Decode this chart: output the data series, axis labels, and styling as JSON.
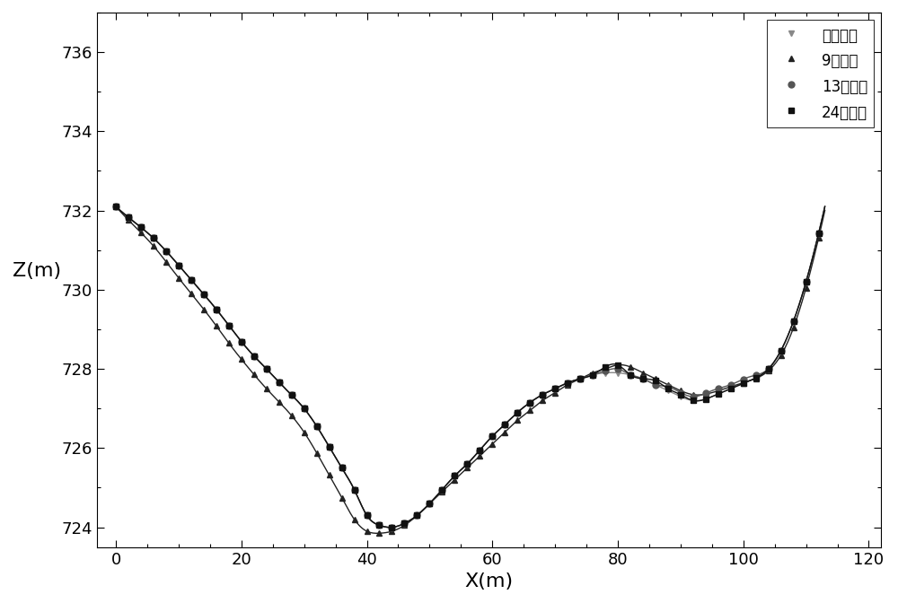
{
  "title": "",
  "xlabel": "X(m)",
  "ylabel": "Z(m)",
  "xlim": [
    -3,
    122
  ],
  "ylim": [
    723.5,
    737
  ],
  "xticks": [
    0,
    20,
    40,
    60,
    80,
    100,
    120
  ],
  "yticks": [
    724,
    726,
    728,
    730,
    732,
    734,
    736
  ],
  "legend_labels": [
    "24点插値",
    "13点插値",
    "9点插値",
    "实测数据"
  ],
  "colors": [
    "#111111",
    "#555555",
    "#222222",
    "#888888"
  ],
  "markers": [
    "s",
    "o",
    "^",
    "v"
  ],
  "markersizes": [
    4,
    5,
    5,
    5
  ],
  "linewidths": [
    1.0,
    1.0,
    1.0,
    1.0
  ],
  "background_color": "#ffffff",
  "figsize": [
    10.0,
    6.72
  ],
  "dpi": 100
}
